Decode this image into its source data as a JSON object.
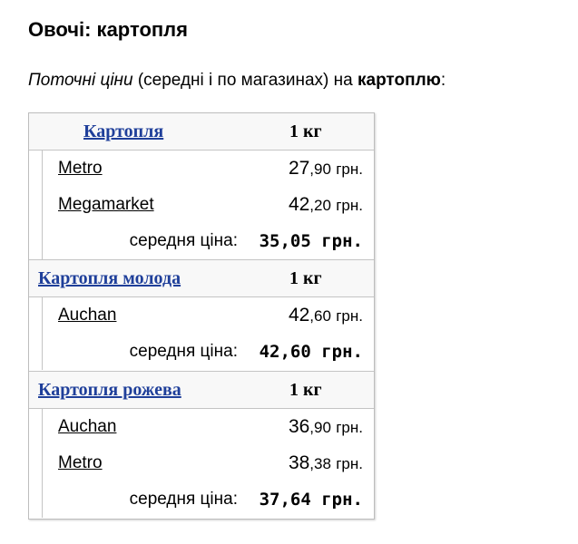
{
  "heading": "Овочі: картопля",
  "intro": {
    "italic": "Поточні ціни",
    "plain": " (середні і по магазинах) на ",
    "bold": "картоплю",
    "tail": ":"
  },
  "avg_label": "середня ціна:",
  "currency": "грн.",
  "groups": [
    {
      "name": "Картопля",
      "unit": "1 кг",
      "stores": [
        {
          "store": "Metro",
          "price_int": "27",
          "price_frac": ",90"
        },
        {
          "store": "Megamarket",
          "price_int": "42",
          "price_frac": ",20"
        }
      ],
      "average": "35,05 грн."
    },
    {
      "name": "Картопля молода",
      "unit": "1 кг",
      "stores": [
        {
          "store": "Auchan",
          "price_int": "42",
          "price_frac": ",60"
        }
      ],
      "average": "42,60 грн."
    },
    {
      "name": "Картопля рожева",
      "unit": "1 кг",
      "stores": [
        {
          "store": "Auchan",
          "price_int": "36",
          "price_frac": ",90"
        },
        {
          "store": "Metro",
          "price_int": "38",
          "price_frac": ",38"
        }
      ],
      "average": "37,64 грн."
    }
  ]
}
